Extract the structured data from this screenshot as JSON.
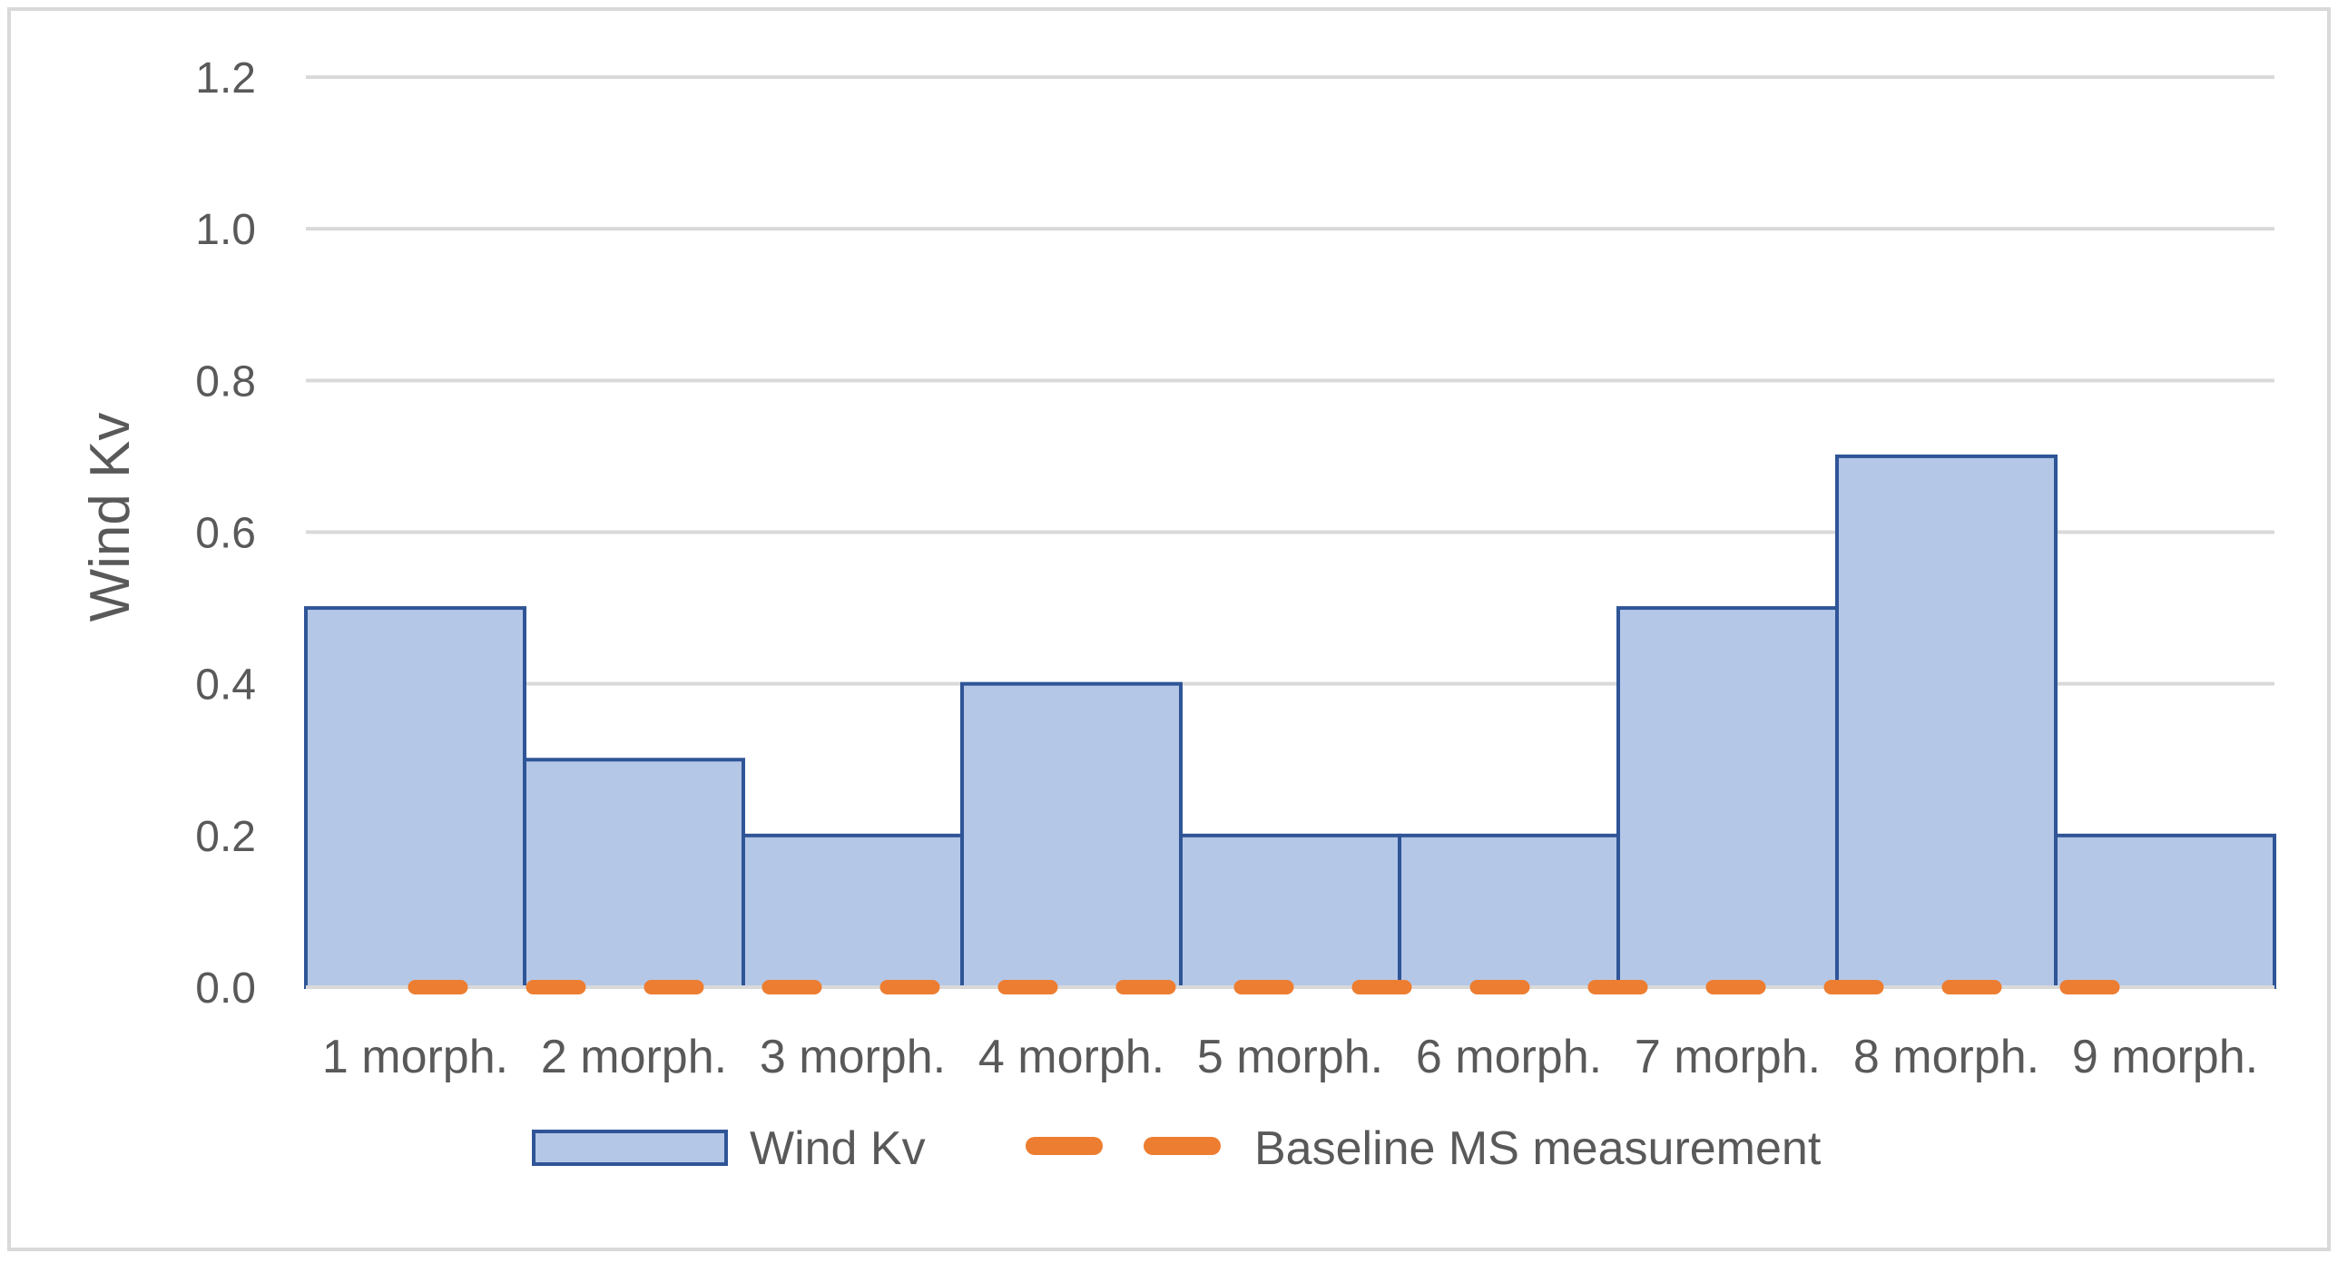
{
  "chart_data": {
    "type": "bar",
    "categories": [
      "1 morph.",
      "2 morph.",
      "3 morph.",
      "4 morph.",
      "5 morph.",
      "6 morph.",
      "7 morph.",
      "8 morph.",
      "9 morph."
    ],
    "series": [
      {
        "name": "Wind Kv",
        "values": [
          0.5,
          0.3,
          0.2,
          0.4,
          0.2,
          0.2,
          0.5,
          0.7,
          0.2
        ],
        "fill": "#b4c7e7",
        "stroke": "#2f5597"
      },
      {
        "name": "Baseline MS measurement",
        "style": "dashed-line",
        "value": 0.0,
        "color": "#ed7d31"
      }
    ],
    "xlabel": "",
    "ylabel": "Wind Kv",
    "ylim": [
      0,
      1.2
    ],
    "yticks": [
      "0.0",
      "0.2",
      "0.4",
      "0.6",
      "0.8",
      "1.0",
      "1.2"
    ],
    "grid": true,
    "legend_position": "bottom",
    "bar_gap": 0
  }
}
